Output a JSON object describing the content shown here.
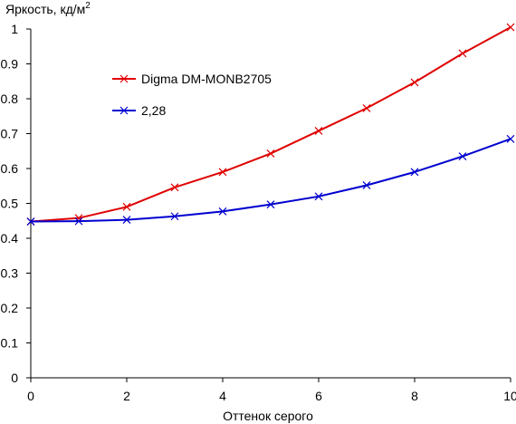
{
  "chart_data": {
    "type": "line",
    "ylabel": "Яркость, кд/м",
    "ylabel_superscript": "2",
    "xlabel": "Оттенок серого",
    "x": [
      0,
      1,
      2,
      3,
      4,
      5,
      6,
      7,
      8,
      9,
      10
    ],
    "xlim": [
      0,
      10
    ],
    "ylim": [
      0,
      1
    ],
    "x_ticks": [
      0,
      2,
      4,
      6,
      8,
      10
    ],
    "y_ticks": [
      0,
      0.1,
      0.2,
      0.3,
      0.4,
      0.5,
      0.6,
      0.7,
      0.8,
      0.9,
      1
    ],
    "y_tick_labels": [
      "0",
      "0.1",
      "0.2",
      "0.3",
      "0.4",
      "0.5",
      "0.6",
      "0.7",
      "0.8",
      "0.9",
      "1"
    ],
    "grid": false,
    "legend_position": "upper-left inside plot",
    "series": [
      {
        "name": "Digma DM-MONB2705",
        "color": "#e00000",
        "marker": "x",
        "values": [
          0.448,
          0.458,
          0.49,
          0.546,
          0.59,
          0.643,
          0.708,
          0.773,
          0.847,
          0.93,
          1.005
        ]
      },
      {
        "name": "2,28",
        "color": "#0000d0",
        "marker": "x",
        "values": [
          0.448,
          0.449,
          0.453,
          0.463,
          0.477,
          0.497,
          0.52,
          0.552,
          0.59,
          0.635,
          0.685
        ]
      }
    ]
  }
}
